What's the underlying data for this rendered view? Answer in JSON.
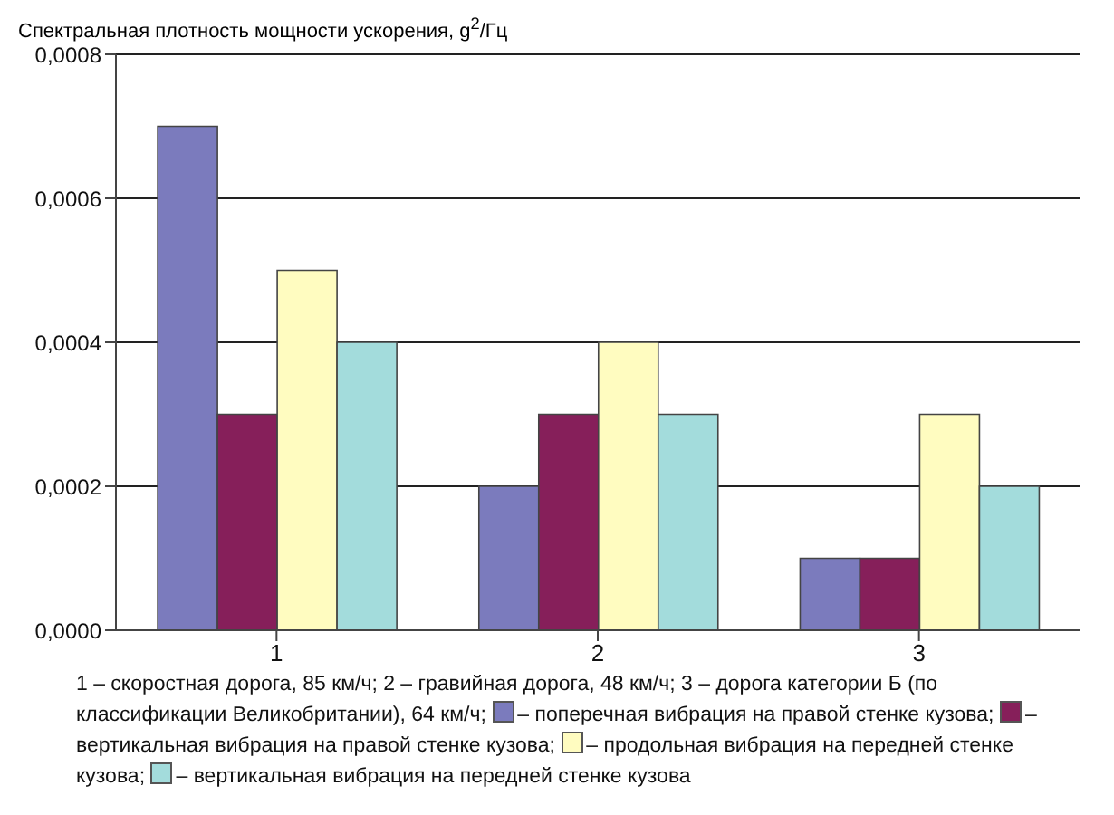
{
  "chart_data": {
    "type": "bar",
    "ylabel": "Спектральная плотность мощности ускорения, g$^{2}$/Гц",
    "categories": [
      "1",
      "2",
      "3"
    ],
    "series": [
      {
        "name": "– поперечная вибрация на правой стенке кузова;",
        "color": "#7b7bbd",
        "values": [
          0.0007,
          0.0002,
          0.0001
        ]
      },
      {
        "name": "– вертикальная вибрация на правой стенке кузова;",
        "color": "#861f5a",
        "values": [
          0.0003,
          0.0003,
          0.0001
        ]
      },
      {
        "name": "– продольная вибрация на передней стенке кузова;",
        "color": "#fffcc0",
        "values": [
          0.0005,
          0.0004,
          0.0003
        ]
      },
      {
        "name": "– вертикальная вибрация на передней стенке кузова",
        "color": "#a3dcdc",
        "values": [
          0.0004,
          0.0003,
          0.0002
        ]
      }
    ],
    "ylim": [
      0,
      0.0008
    ],
    "yticks": [
      {
        "value": 0,
        "label": "0,0000"
      },
      {
        "value": 0.0002,
        "label": "0,0002"
      },
      {
        "value": 0.0004,
        "label": "0,0004"
      },
      {
        "value": 0.0006,
        "label": "0,0006"
      },
      {
        "value": 0.0008,
        "label": "0,0008"
      }
    ],
    "grid": "y",
    "legend": "bottom",
    "annotations": [
      "1 – скоростная дорога, 85 км/ч; 2 – гравийная дорога, 48 км/ч; 3 – дорога категории Б (по классификации Великобритании), 64 км/ч;"
    ]
  }
}
